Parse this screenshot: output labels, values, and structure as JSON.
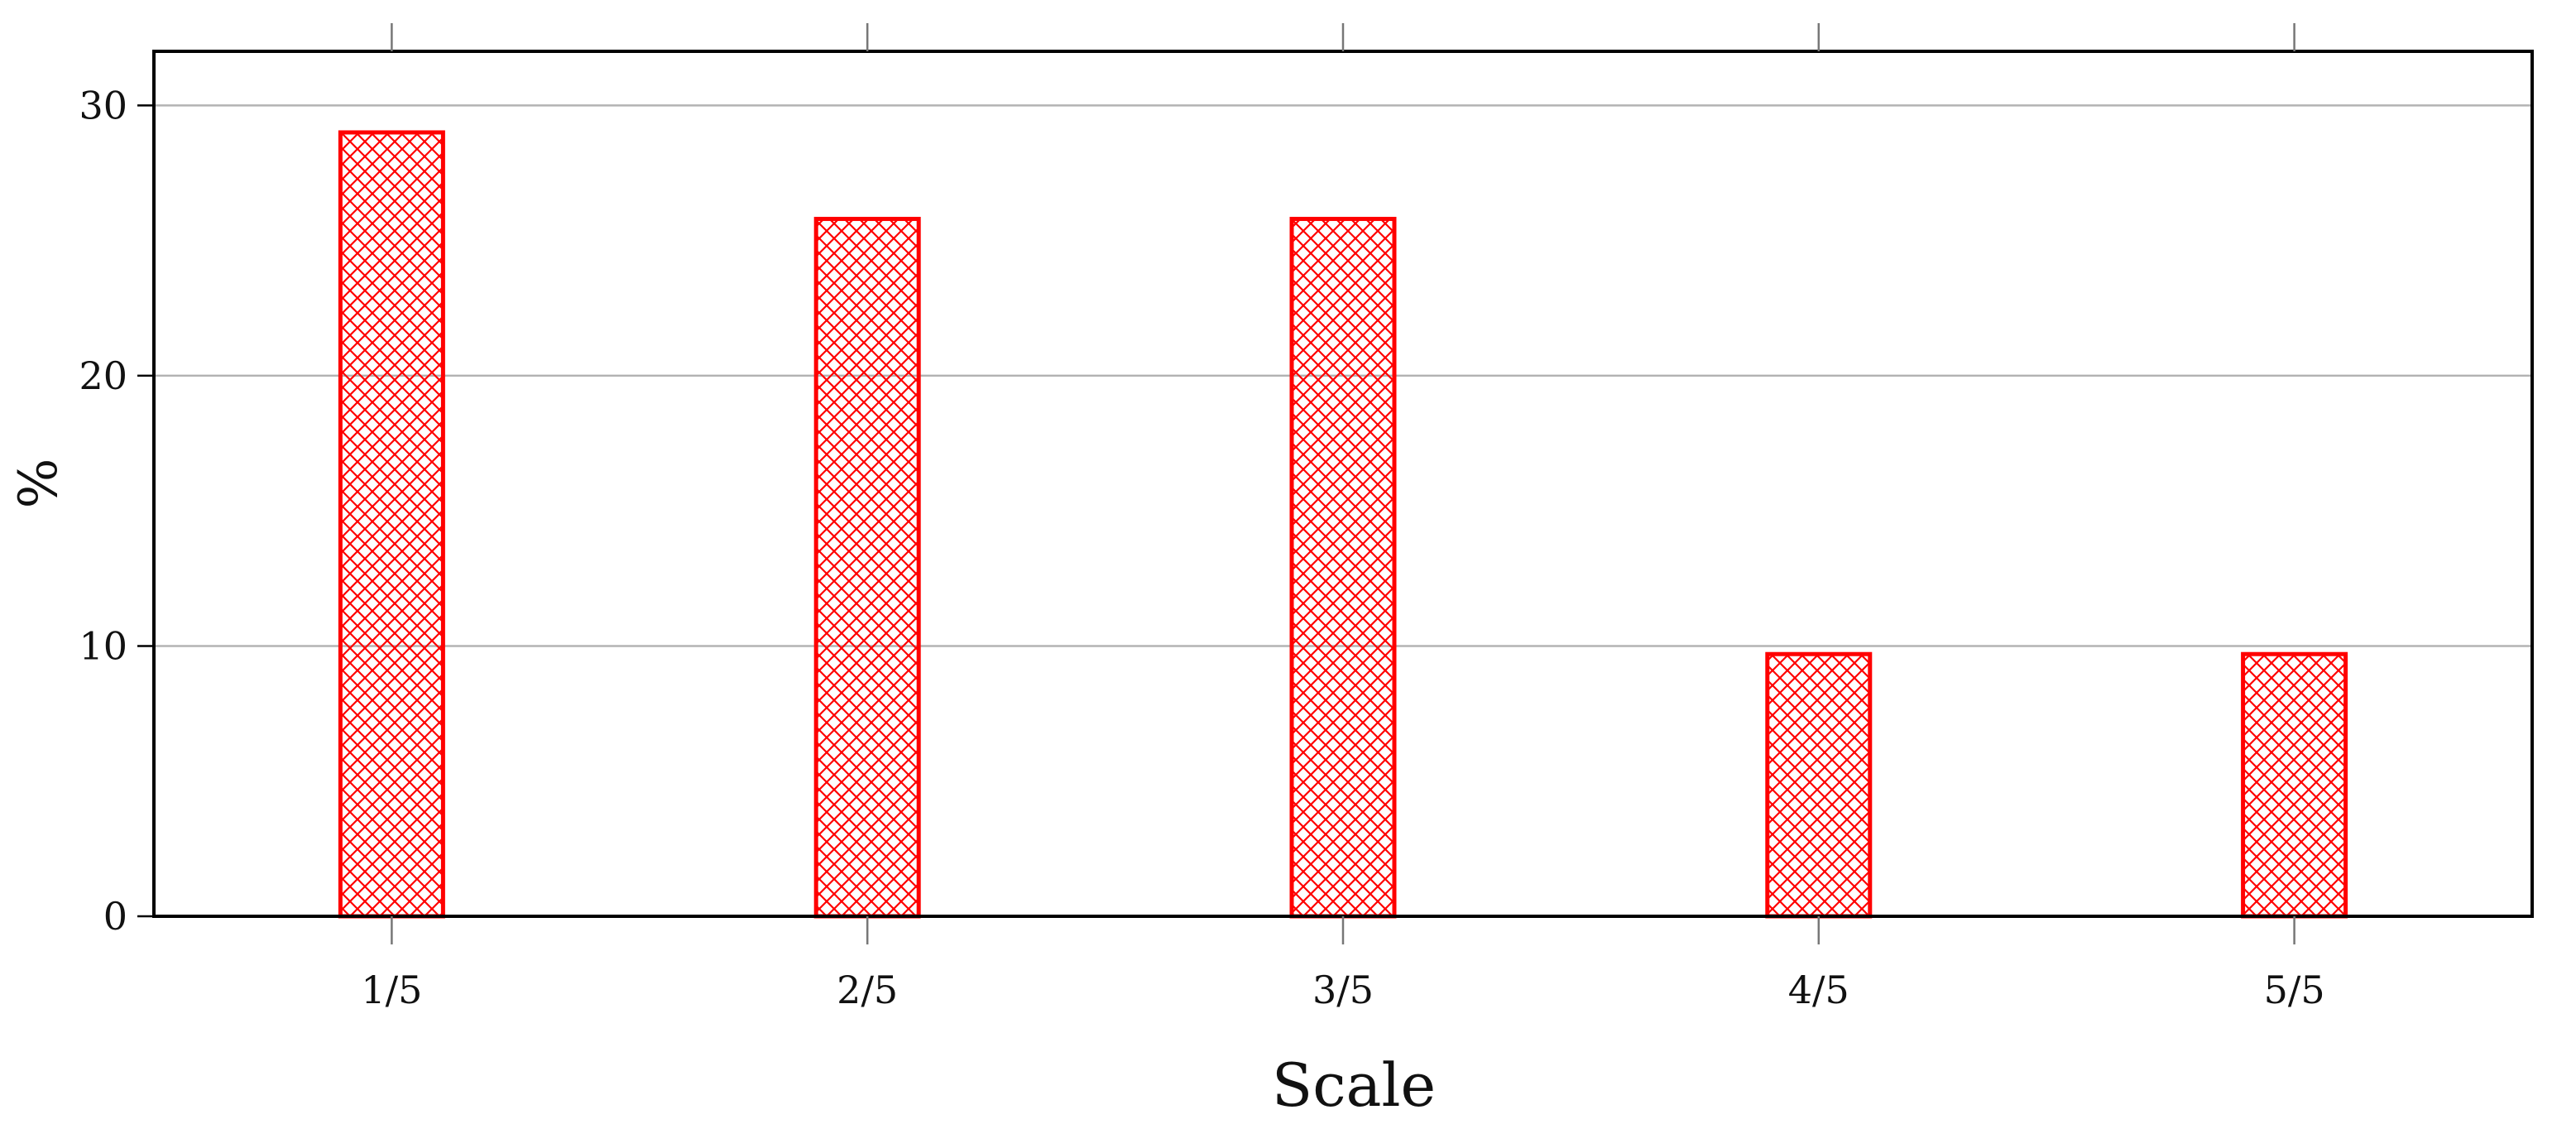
{
  "chart_data": {
    "type": "bar",
    "title": "",
    "xlabel": "Scale",
    "ylabel": "%",
    "categories": [
      "1/5",
      "2/5",
      "3/5",
      "4/5",
      "5/5"
    ],
    "values": [
      29.0,
      25.8,
      25.8,
      9.7,
      9.7
    ],
    "ylim": [
      0,
      32
    ],
    "yticks": [
      0,
      10,
      20,
      30
    ],
    "grid": "horizontal",
    "bar_color": "#ff0000",
    "bar_fill": "crosshatch"
  }
}
